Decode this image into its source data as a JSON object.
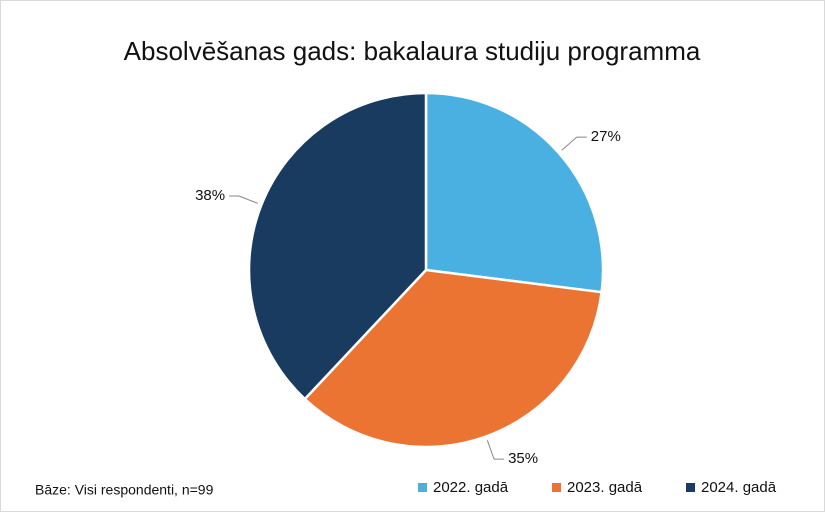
{
  "chart_data": {
    "type": "pie",
    "title": "Absolvēšanas gads: bakalaura studiju programma",
    "categories": [
      "2022. gadā",
      "2023. gadā",
      "2024. gadā"
    ],
    "values": [
      27,
      35,
      38
    ],
    "value_labels": [
      "27%",
      "35%",
      "38%"
    ],
    "colors": [
      "#4aafe1",
      "#eb7433",
      "#1a3b60"
    ],
    "legend": "bottom-right",
    "note": "Bāze: Visi respondenti, n=99"
  }
}
